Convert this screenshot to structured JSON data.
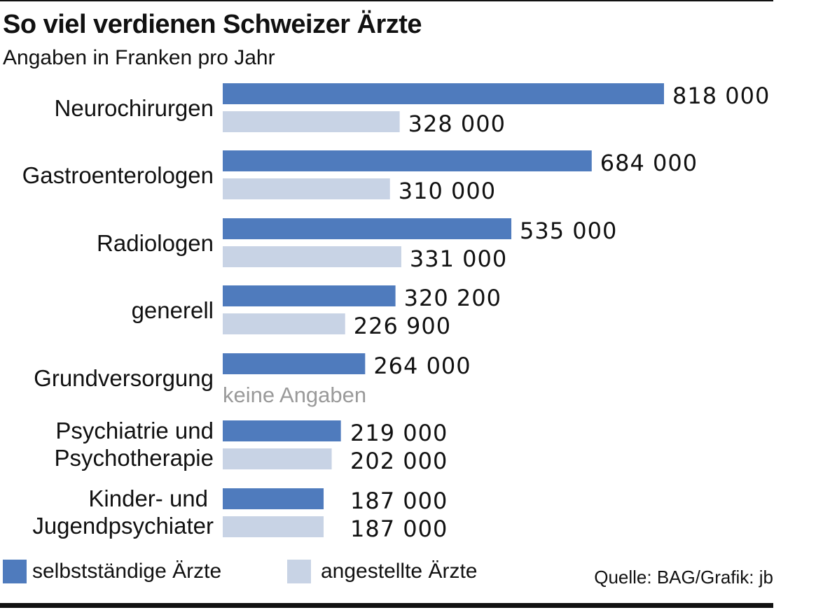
{
  "title": "So viel verdienen Schweizer Ärzte",
  "subtitle": "Angaben in Franken pro Jahr",
  "source": "Quelle: BAG/Grafik: jb",
  "colors": {
    "selbststaendig": "#4f7bbd",
    "angestellt": "#c8d3e5"
  },
  "legend": {
    "series1": "selbstständige Ärzte",
    "series2": "angestellte Ärzte"
  },
  "chart_data": {
    "type": "bar",
    "orientation": "horizontal",
    "title": "So viel verdienen Schweizer Ärzte",
    "subtitle": "Angaben in Franken pro Jahr",
    "categories": [
      [
        "Neurochirurgen"
      ],
      [
        "Gastroenterologen"
      ],
      [
        "Radiologen"
      ],
      [
        "generell"
      ],
      [
        "Grundversorgung"
      ],
      [
        "Psychiatrie und",
        "Psychotherapie"
      ],
      [
        "Kinder- und",
        "Jugendpsychiater"
      ]
    ],
    "series": [
      {
        "name": "selbstständige Ärzte",
        "values": [
          818000,
          684000,
          535000,
          320200,
          264000,
          219000,
          187000
        ],
        "labels": [
          "818 000",
          "684 000",
          "535 000",
          "320 200",
          "264 000",
          "219 000",
          "187 000"
        ]
      },
      {
        "name": "angestellte Ärzte",
        "values": [
          328000,
          310000,
          331000,
          226900,
          null,
          202000,
          187000
        ],
        "labels": [
          "328 000",
          "310 000",
          "331 000",
          "226 900",
          "keine Angaben",
          "202 000",
          "187 000"
        ]
      }
    ],
    "missing_label": "keine Angaben",
    "xlim": [
      0,
      818000
    ],
    "grid": false,
    "legend_position": "bottom-left"
  }
}
